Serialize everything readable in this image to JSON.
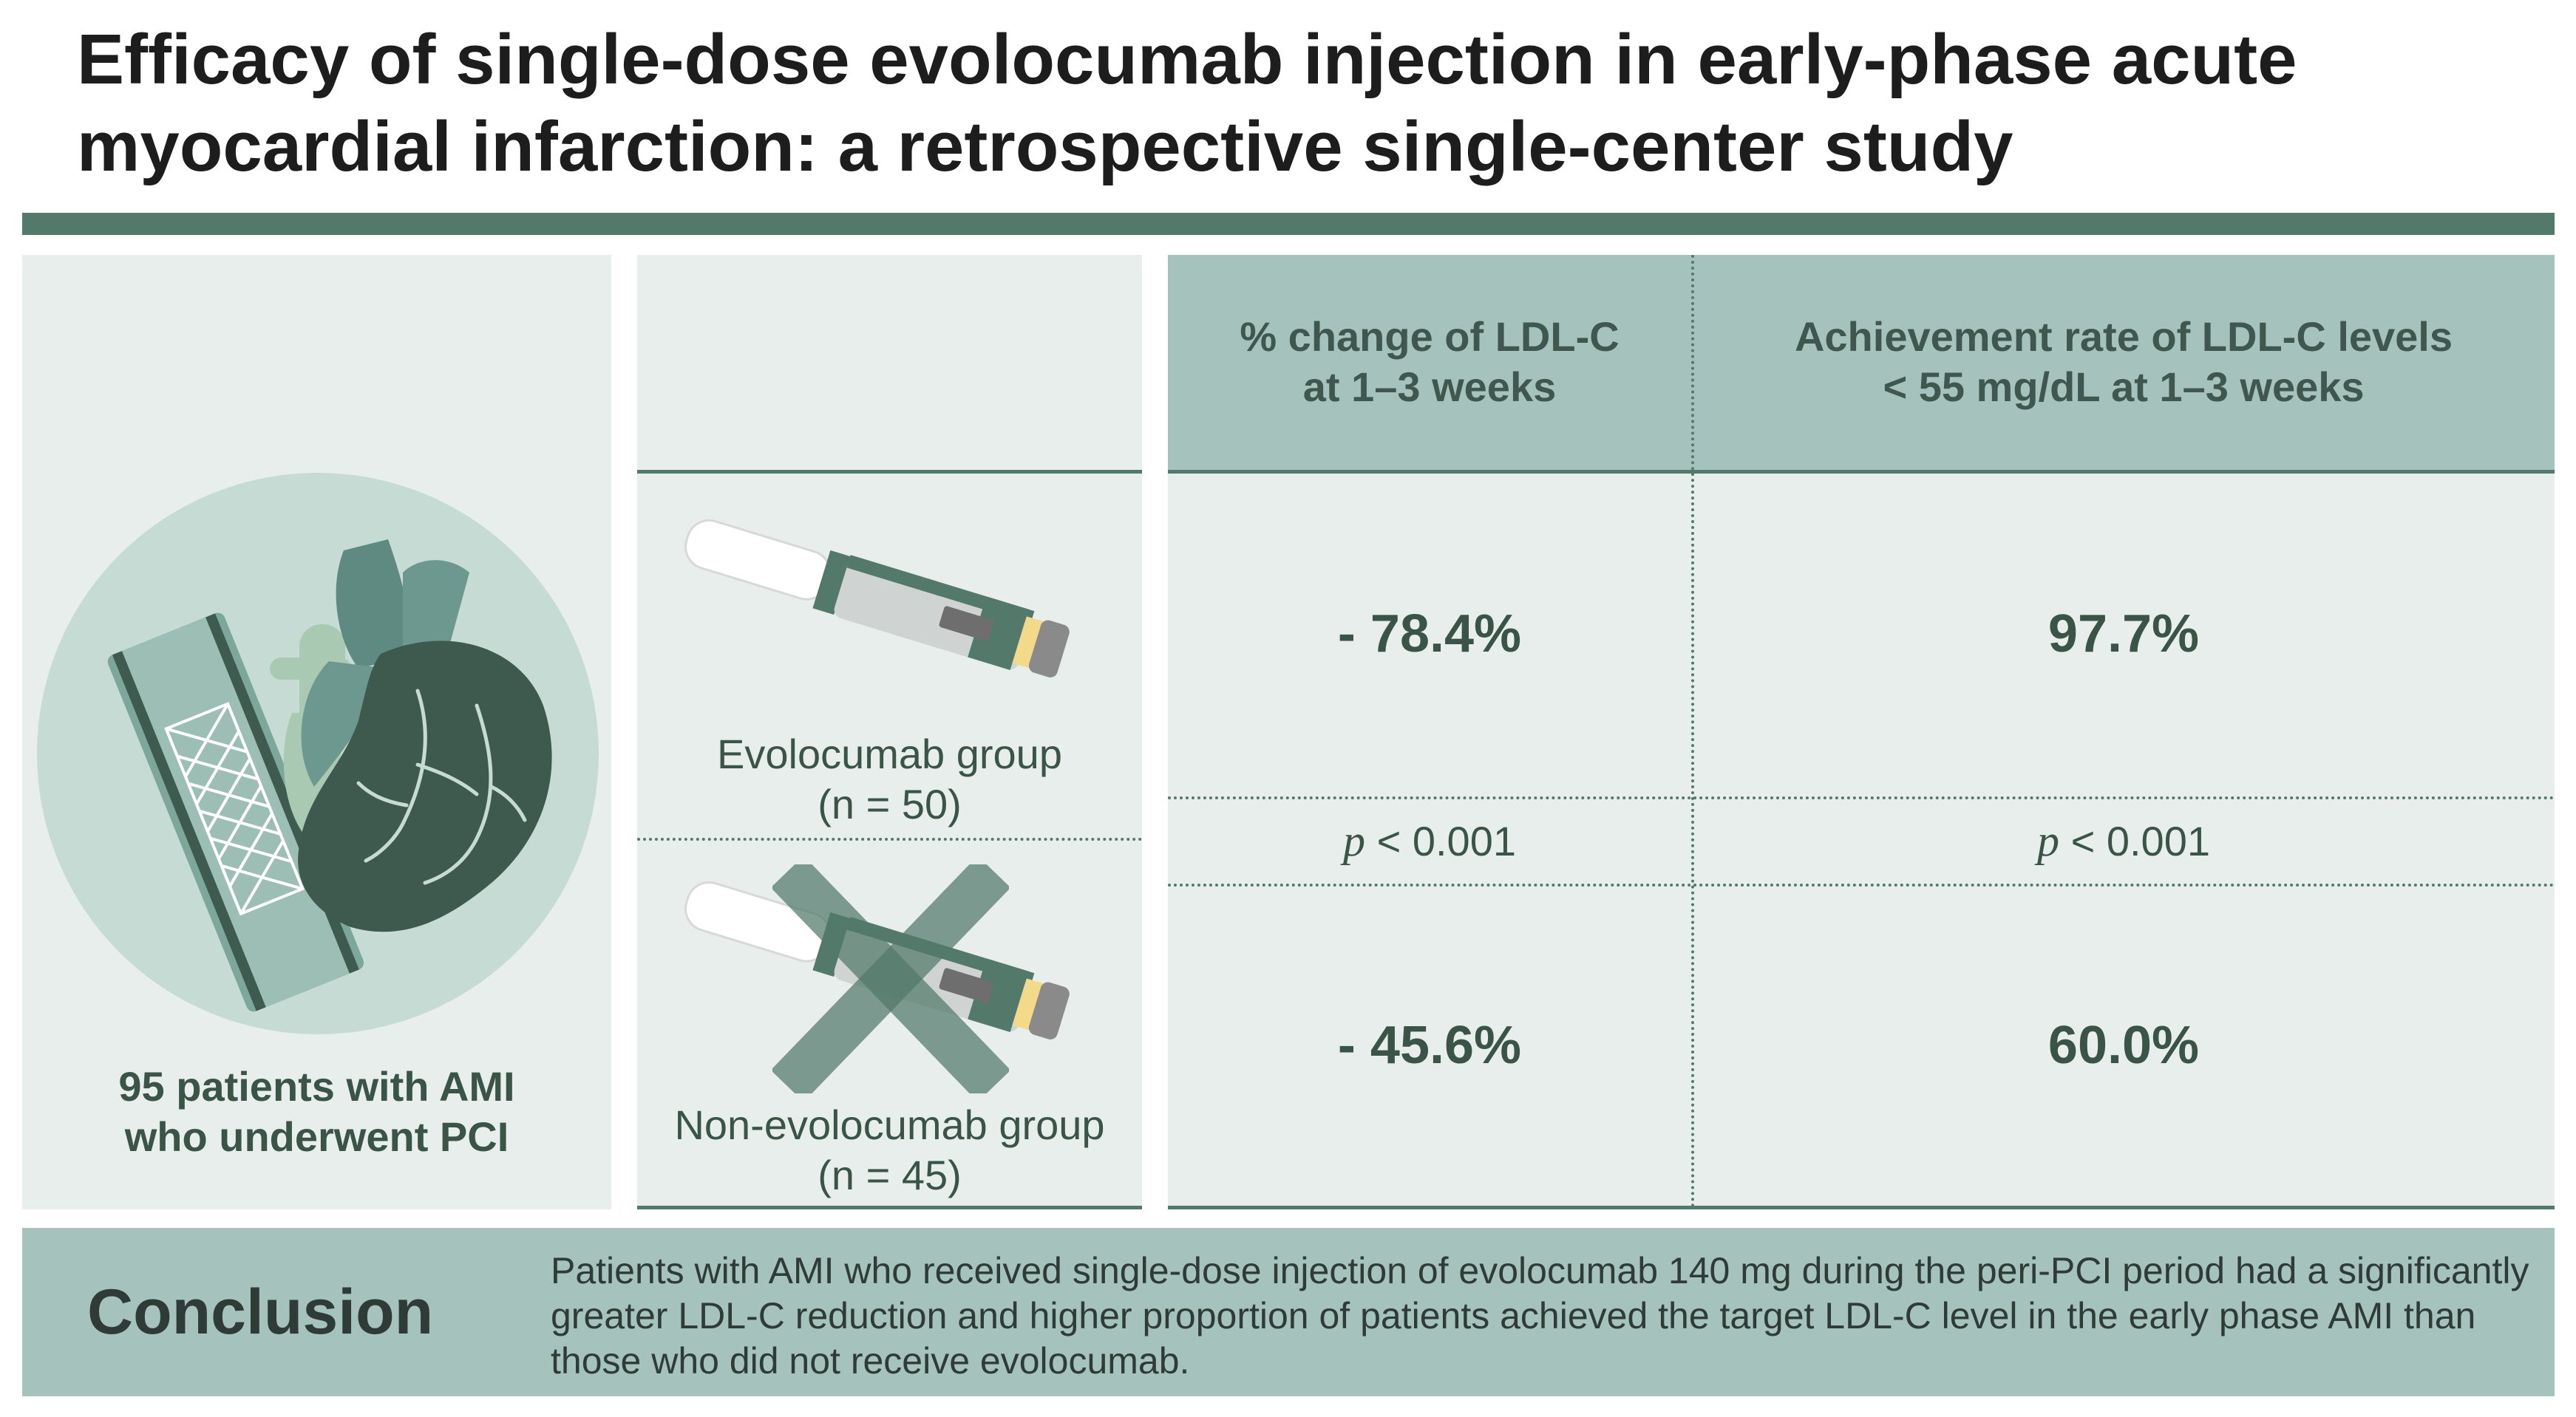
{
  "title": {
    "line1": "Efficacy of single-dose evolocumab injection in early-phase acute",
    "line2": "myocardial infarction: a retrospective single-center study"
  },
  "population": {
    "line1": "95 patients with AMI",
    "line2": "who underwent PCI"
  },
  "groups": {
    "evolocumab": {
      "name": "Evolocumab group",
      "n": "(n = 50)"
    },
    "non_evolocumab": {
      "name": "Non-evolocumab group",
      "n": "(n = 45)"
    }
  },
  "table": {
    "col1_header": {
      "line1": "% change of LDL-C",
      "line2": "at 1–3 weeks"
    },
    "col2_header": {
      "line1": "Achievement rate of LDL-C levels",
      "line2": "< 55 mg/dL at 1–3 weeks"
    },
    "evolocumab_row": {
      "ldl_change": "- 78.4%",
      "achievement": "97.7%"
    },
    "p_row": {
      "p_symbol": "p",
      "ldl_change_p": "< 0.001",
      "achievement_p": "< 0.001"
    },
    "non_evolocumab_row": {
      "ldl_change": "- 45.6%",
      "achievement": "60.0%"
    }
  },
  "conclusion": {
    "label": "Conclusion",
    "text": "Patients with AMI who received single-dose injection of evolocumab 140 mg during the peri-PCI period had a significantly greater LDL-C reduction and higher proportion of patients achieved the target LDL-C level in the early phase AMI than those who did not receive evolocumab."
  },
  "colors": {
    "accent_dark": "#52796a",
    "panel_light": "#e7eeeb",
    "panel_header": "#a5c2bc"
  },
  "icons": {
    "heart": "heart-stent-icon",
    "pen": "injection-pen-icon",
    "cross": "cross-mark-icon"
  }
}
